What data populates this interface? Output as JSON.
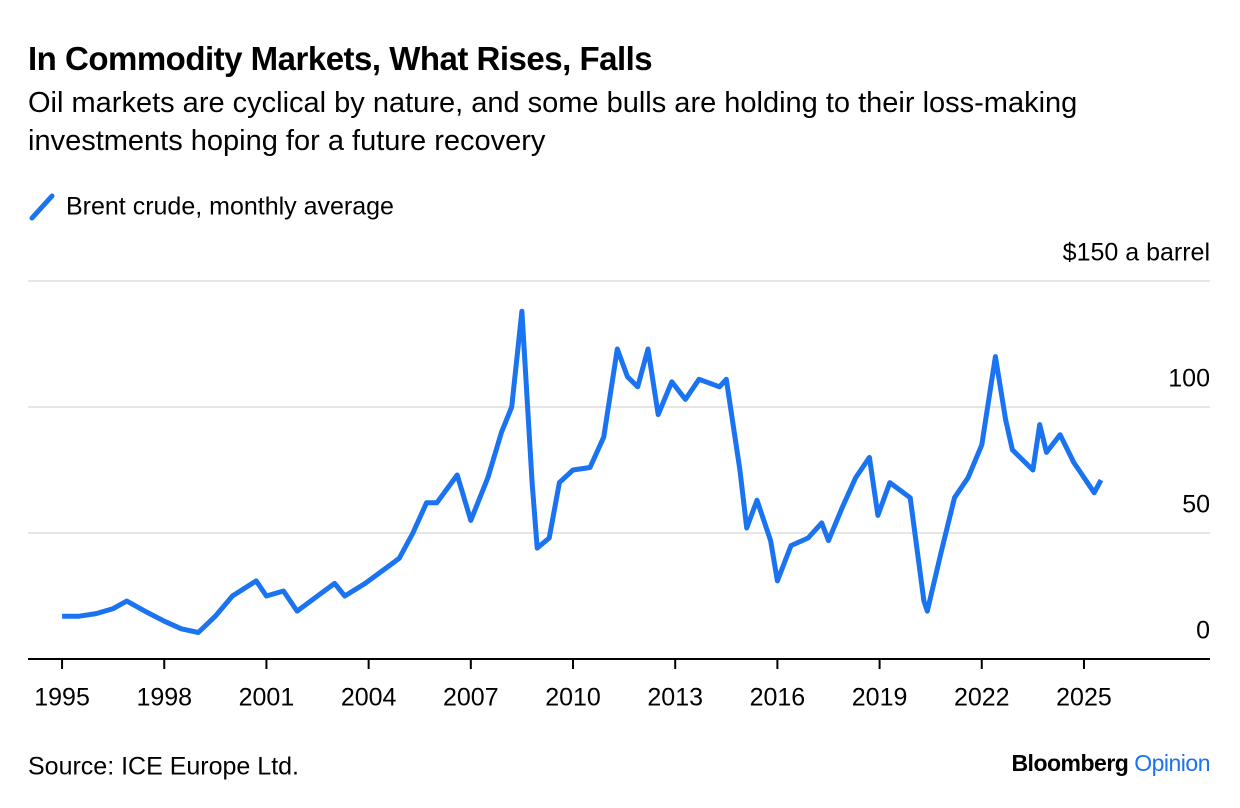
{
  "chart_data": {
    "type": "line",
    "title": "In Commodity Markets, What Rises, Falls",
    "subtitle": "Oil markets are cyclical by nature, and some bulls are holding to their loss-making investments hoping for a future recovery",
    "source": "Source: ICE Europe Ltd.",
    "brand": "Bloomberg",
    "brand_suffix": "Opinion",
    "xlim": [
      1994,
      2028.7
    ],
    "xticks": [
      1995,
      1998,
      2001,
      2004,
      2007,
      2010,
      2013,
      2016,
      2019,
      2022,
      2025
    ],
    "ylim": [
      0,
      150
    ],
    "yticks": [
      0,
      50,
      100,
      {
        "value": 150,
        "label": "$150 a barrel"
      }
    ],
    "grid": true,
    "series": [
      {
        "name": "Brent crude, monthly average",
        "color": "#1a73f0",
        "x": [
          1995.0,
          1995.5,
          1996.0,
          1996.5,
          1996.9,
          1997.5,
          1998.0,
          1998.5,
          1999.0,
          1999.5,
          2000.0,
          2000.7,
          2001.0,
          2001.5,
          2001.9,
          2002.5,
          2003.0,
          2003.3,
          2003.9,
          2004.5,
          2004.9,
          2005.3,
          2005.7,
          2006.0,
          2006.6,
          2007.0,
          2007.5,
          2007.9,
          2008.2,
          2008.5,
          2008.8,
          2008.95,
          2009.3,
          2009.6,
          2010.0,
          2010.5,
          2010.9,
          2011.3,
          2011.6,
          2011.9,
          2012.2,
          2012.5,
          2012.9,
          2013.3,
          2013.7,
          2014.3,
          2014.5,
          2014.9,
          2015.1,
          2015.4,
          2015.8,
          2016.0,
          2016.4,
          2016.9,
          2017.3,
          2017.5,
          2017.9,
          2018.3,
          2018.7,
          2018.95,
          2019.3,
          2019.9,
          2020.3,
          2020.4,
          2020.8,
          2021.2,
          2021.6,
          2022.0,
          2022.4,
          2022.7,
          2022.9,
          2023.5,
          2023.7,
          2023.9,
          2024.3,
          2024.7,
          2024.9,
          2025.3,
          2025.5
        ],
        "values": [
          17,
          17,
          18,
          20,
          23,
          18.5,
          15,
          12,
          10.5,
          17,
          25,
          31,
          25,
          27,
          19,
          25,
          30,
          25,
          30,
          36,
          40,
          50,
          62,
          62,
          73,
          55,
          72,
          90,
          100,
          138,
          70,
          44,
          48,
          70,
          75,
          76,
          88,
          123,
          112,
          108,
          123,
          97,
          110,
          103,
          111,
          108,
          111,
          75,
          52,
          63,
          47,
          31,
          45,
          48,
          54,
          47,
          60,
          72,
          80,
          57,
          70,
          64,
          23,
          19,
          42,
          64,
          72,
          85,
          120,
          95,
          83,
          75,
          93,
          82,
          89,
          78,
          74,
          66,
          71
        ]
      }
    ]
  }
}
